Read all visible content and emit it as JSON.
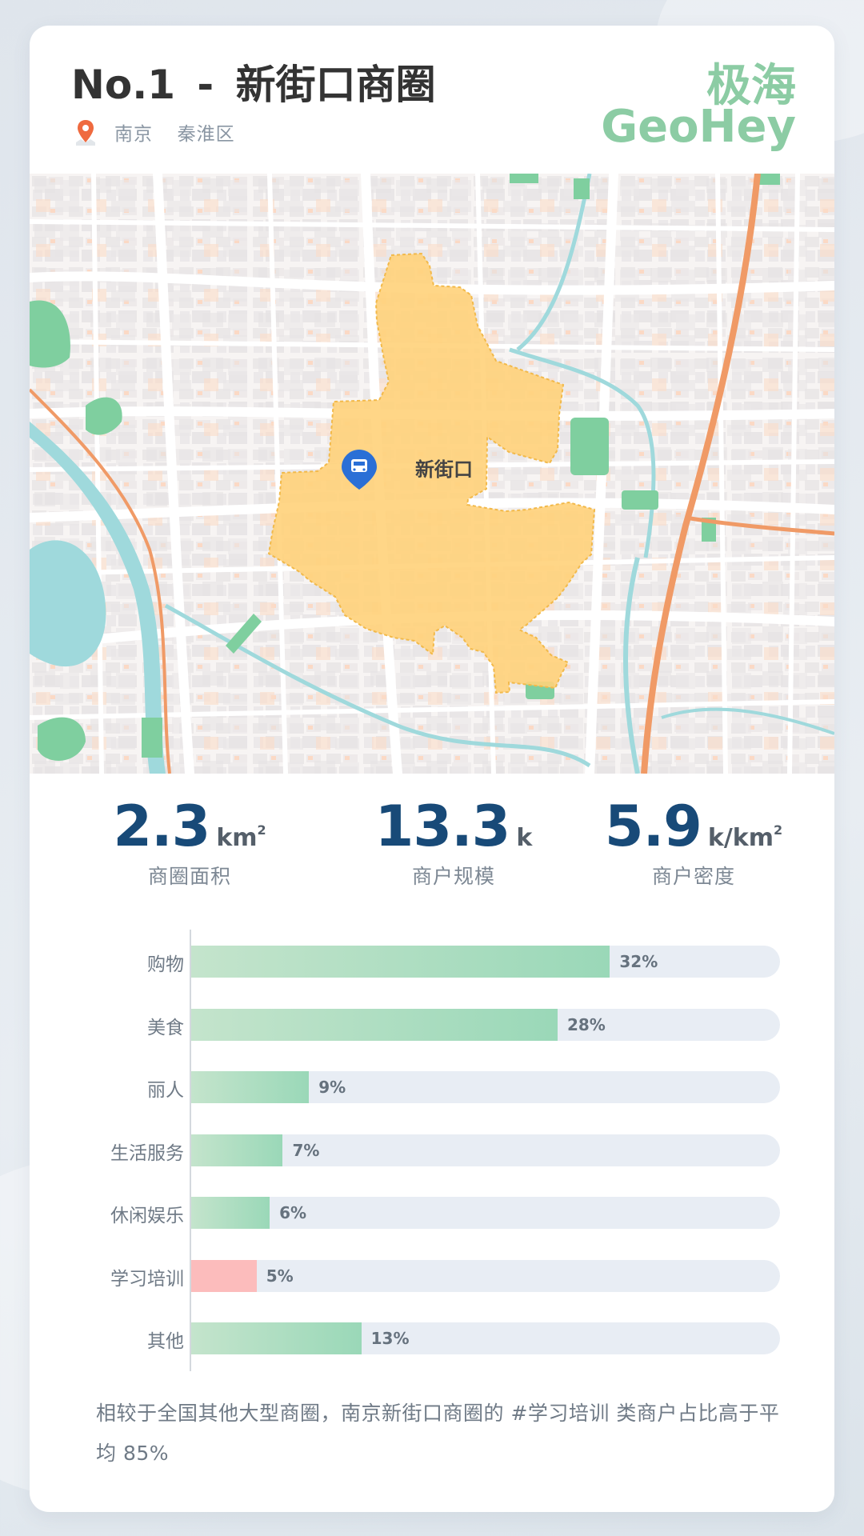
{
  "header": {
    "rank": "No.1",
    "separator": "-",
    "district_name": "新街口商圈",
    "city": "南京",
    "area": "秦淮区",
    "brand_cn": "极海",
    "brand_en": "GeoHey",
    "location_icon": "map-pin-icon"
  },
  "map": {
    "station_name": "新街口",
    "station_icon": "bus-pin-icon",
    "colors": {
      "zone_fill": "#ffd27a",
      "zone_stroke": "#f2b94a",
      "water": "#9fd9dc",
      "park": "#7fcf9f",
      "metro": "#f09a66"
    }
  },
  "stats": [
    {
      "value": "2.3",
      "unit": "km",
      "unit_sup": "2",
      "label": "商圈面积"
    },
    {
      "value": "13.3",
      "unit": "k",
      "unit_sup": "",
      "label": "商户规模"
    },
    {
      "value": "5.9",
      "unit": "k/km",
      "unit_sup": "2",
      "label": "商户密度"
    }
  ],
  "chart_data": {
    "type": "bar",
    "orientation": "horizontal",
    "categories": [
      "购物",
      "美食",
      "丽人",
      "生活服务",
      "休闲娱乐",
      "学习培训",
      "其他"
    ],
    "values": [
      32,
      28,
      9,
      7,
      6,
      5,
      13
    ],
    "value_labels": [
      "32%",
      "28%",
      "9%",
      "7%",
      "6%",
      "5%",
      "13%"
    ],
    "highlight_category": "学习培训",
    "xlim": [
      0,
      45
    ],
    "grid": false,
    "colors": {
      "bar_start": "#c4e4cc",
      "bar_end": "#9ad8b8",
      "highlight": "#fcbcbc",
      "track": "#e8edf4"
    }
  },
  "footnote": "相较于全国其他大型商圈，南京新街口商圈的 #学习培训 类商户占比高于平均 85%"
}
